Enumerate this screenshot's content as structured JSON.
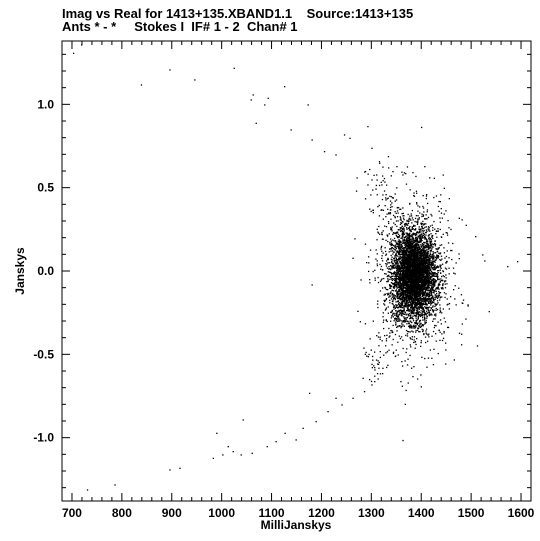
{
  "header": {
    "title_line1": "Imag vs Real for 1413+135.XBAND1.1    Source:1413+135",
    "title_line2": "Ants * - *     Stokes I  IF# 1 - 2  Chan# 1"
  },
  "chart_data": {
    "type": "scatter",
    "xlabel": "MilliJanskys",
    "ylabel": "Janskys",
    "xlim": [
      680,
      1620
    ],
    "ylim": [
      -1.38,
      1.38
    ],
    "xticks": [
      700,
      800,
      900,
      1000,
      1100,
      1200,
      1300,
      1400,
      1500,
      1600
    ],
    "yticks": [
      -1.0,
      -0.5,
      0.0,
      0.5,
      1.0
    ],
    "ytick_labels": [
      "-1.0",
      "-0.5",
      "0.0",
      "0.5",
      "1.0"
    ],
    "grid": false,
    "marker_color": "#000000",
    "cluster": {
      "center_x": 1385,
      "center_y": -0.02,
      "sigma_x": 22,
      "sigma_y": 0.13
    },
    "points": [
      [
        702,
        1.31
      ],
      [
        718,
        1.36
      ],
      [
        838,
        1.12
      ],
      [
        895,
        1.21
      ],
      [
        945,
        1.15
      ],
      [
        1024,
        1.22
      ],
      [
        1058,
        1.03
      ],
      [
        1062,
        1.06
      ],
      [
        1068,
        0.89
      ],
      [
        1085,
        1.0
      ],
      [
        1092,
        1.04
      ],
      [
        1125,
        1.11
      ],
      [
        1138,
        0.85
      ],
      [
        1172,
        1.0
      ],
      [
        1180,
        0.79
      ],
      [
        1205,
        0.72
      ],
      [
        1228,
        0.7
      ],
      [
        1245,
        0.82
      ],
      [
        1256,
        0.8
      ],
      [
        1292,
        0.87
      ],
      [
        1300,
        0.74
      ],
      [
        1315,
        0.66
      ],
      [
        1333,
        0.69
      ],
      [
        1350,
        0.63
      ],
      [
        1362,
        0.58
      ],
      [
        1322,
        0.46
      ],
      [
        1425,
        0.56
      ],
      [
        1445,
        0.5
      ],
      [
        1475,
        0.32
      ],
      [
        1508,
        0.21
      ],
      [
        1522,
        0.1
      ],
      [
        1572,
        0.03
      ],
      [
        1592,
        0.06
      ],
      [
        1535,
        -0.24
      ],
      [
        1482,
        -0.19
      ],
      [
        1465,
        -0.53
      ],
      [
        1448,
        -0.47
      ],
      [
        1420,
        -0.52
      ],
      [
        1382,
        -0.63
      ],
      [
        1358,
        -0.66
      ],
      [
        1322,
        -0.58
      ],
      [
        1300,
        -0.68
      ],
      [
        1285,
        -0.72
      ],
      [
        1262,
        -0.76
      ],
      [
        1240,
        -0.8
      ],
      [
        1228,
        -0.76
      ],
      [
        1212,
        -0.84
      ],
      [
        1188,
        -0.9
      ],
      [
        1175,
        -0.73
      ],
      [
        1162,
        -0.94
      ],
      [
        1148,
        -1.01
      ],
      [
        1126,
        -0.97
      ],
      [
        1108,
        -1.02
      ],
      [
        1090,
        -1.05
      ],
      [
        1060,
        -1.09
      ],
      [
        1042,
        -0.89
      ],
      [
        1038,
        -1.1
      ],
      [
        1022,
        -1.08
      ],
      [
        1012,
        -1.05
      ],
      [
        1001,
        -1.1
      ],
      [
        989,
        -0.97
      ],
      [
        982,
        -1.12
      ],
      [
        915,
        -1.18
      ],
      [
        895,
        -1.19
      ],
      [
        785,
        -1.28
      ],
      [
        730,
        -1.31
      ],
      [
        1180,
        -0.08
      ],
      [
        1262,
        0.08
      ],
      [
        1278,
        -0.05
      ],
      [
        1300,
        0.55
      ],
      [
        1406,
        0.63
      ],
      [
        1342,
        0.6
      ],
      [
        1384,
        -0.57
      ],
      [
        1398,
        -0.62
      ]
    ]
  }
}
